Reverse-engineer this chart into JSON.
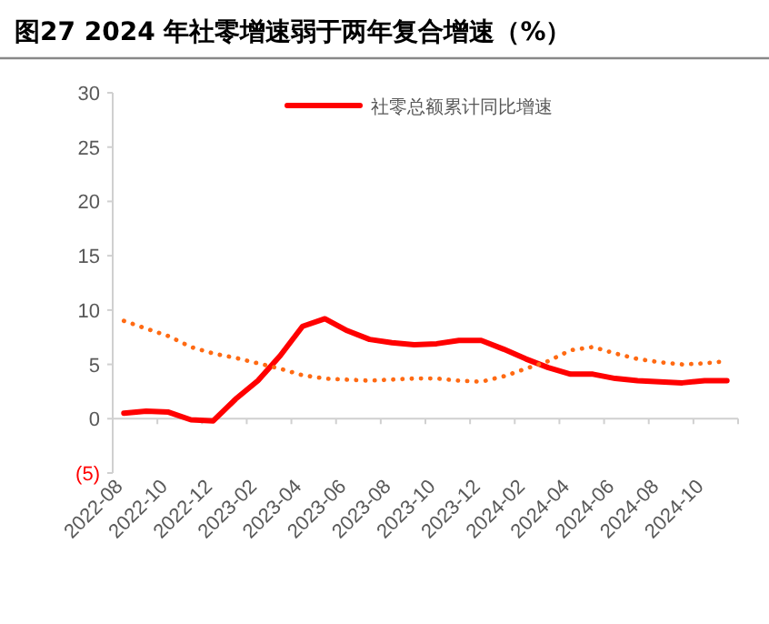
{
  "chart_data": {
    "type": "line",
    "title": "图27 2024 年社零增速弱于两年复合增速（%）",
    "categories": [
      "2022-08",
      null,
      "2022-10",
      null,
      "2022-12",
      null,
      "2023-02",
      null,
      "2023-04",
      null,
      "2023-06",
      null,
      "2023-08",
      null,
      "2023-10",
      null,
      "2023-12",
      null,
      "2024-02",
      null,
      "2024-04",
      null,
      "2024-06",
      null,
      "2024-08",
      null,
      "2024-10",
      null
    ],
    "series": [
      {
        "name": "社零总额累计同比增速",
        "color": "#ff0000",
        "line_style": "solid",
        "values": [
          0.5,
          0.7,
          0.6,
          -0.1,
          -0.2,
          1.8,
          3.5,
          5.8,
          8.5,
          9.2,
          8.1,
          7.3,
          7.0,
          6.8,
          6.9,
          7.2,
          7.2,
          6.4,
          5.5,
          4.7,
          4.1,
          4.1,
          3.7,
          3.5,
          3.4,
          3.3,
          3.5,
          3.5
        ]
      },
      {
        "color": "#ff6a13",
        "line_style": "dotted",
        "values": [
          9.0,
          8.3,
          7.6,
          6.6,
          6.0,
          5.6,
          5.1,
          4.6,
          4.0,
          3.7,
          3.6,
          3.5,
          3.6,
          3.7,
          3.7,
          3.5,
          3.4,
          3.9,
          4.6,
          5.3,
          6.3,
          6.6,
          6.0,
          5.5,
          5.2,
          5.0,
          5.1,
          5.3
        ]
      }
    ],
    "ylim": [
      -5,
      30
    ],
    "yticks": [
      {
        "value": -5,
        "label": "(5)"
      },
      0,
      5,
      10,
      15,
      20,
      25,
      30
    ],
    "legend": "top"
  }
}
